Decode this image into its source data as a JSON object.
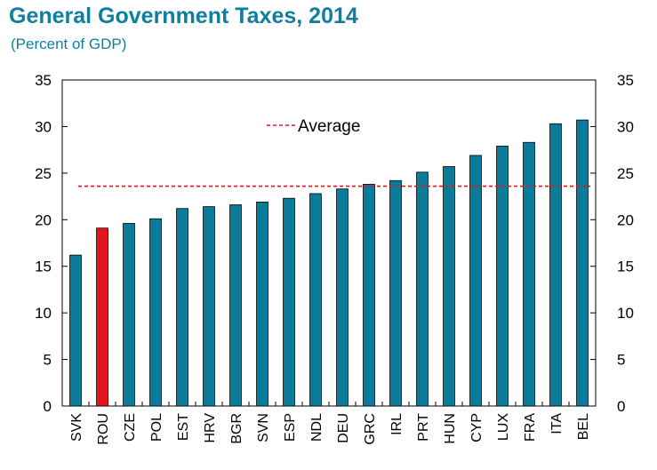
{
  "chart_data": {
    "type": "bar",
    "title": "General Government Taxes, 2014",
    "subtitle": "(Percent of GDP)",
    "categories": [
      "SVK",
      "ROU",
      "CZE",
      "POL",
      "EST",
      "HRV",
      "BGR",
      "SVN",
      "ESP",
      "NDL",
      "DEU",
      "GRC",
      "IRL",
      "PRT",
      "HUN",
      "CYP",
      "LUX",
      "FRA",
      "ITA",
      "BEL"
    ],
    "values": [
      16.2,
      19.1,
      19.6,
      20.1,
      21.2,
      21.4,
      21.6,
      21.9,
      22.3,
      22.8,
      23.3,
      23.8,
      24.2,
      25.1,
      25.7,
      26.9,
      27.9,
      28.3,
      30.3,
      30.7
    ],
    "highlight_category": "ROU",
    "average": 23.6,
    "legend": {
      "average_label": "Average",
      "position": "top-center"
    },
    "ylim": [
      0,
      35
    ],
    "yticks": [
      0,
      5,
      10,
      15,
      20,
      25,
      30,
      35
    ],
    "dual_y_axis": true,
    "grid": false,
    "colors": {
      "bar": "#0b7b9a",
      "highlight": "#e3161d",
      "average_line": "#e3161d",
      "title": "#0e7fa0"
    }
  }
}
